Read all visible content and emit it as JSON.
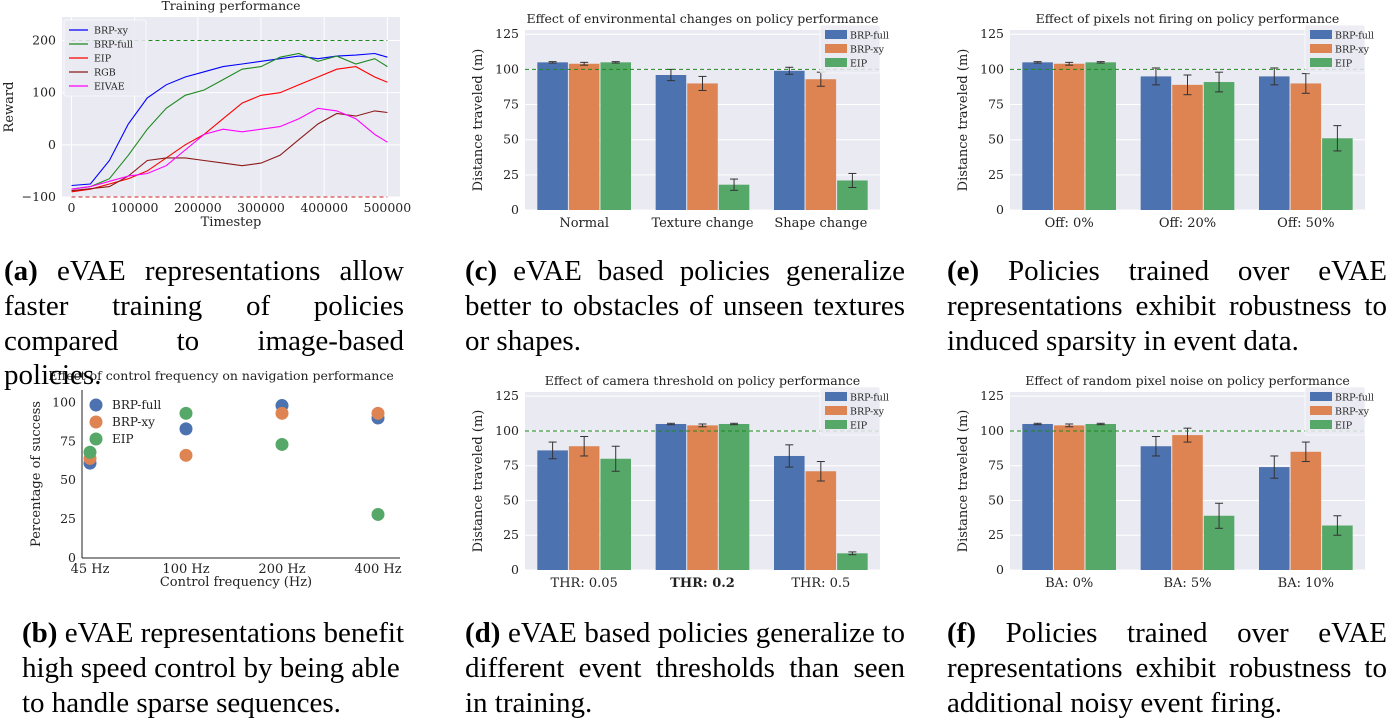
{
  "colors": {
    "blue": "#4C72B0",
    "orange": "#DD8452",
    "green": "#55A868",
    "bg": "#EAEAF2",
    "grid": "#FFFFFF",
    "ref": "#1C8A1C",
    "err": "#333333"
  },
  "panels": [
    {
      "id": "a",
      "caption": {
        "label": "(a)",
        "text": " eVAE representations allow faster training of policies compared to image-based policies."
      },
      "chart_data": {
        "type": "line",
        "title": "Training performance",
        "xlabel": "Timestep",
        "ylabel": "Reward",
        "xlim": [
          -15000,
          520000
        ],
        "ylim": [
          -100,
          245
        ],
        "xticks": [
          0,
          100000,
          200000,
          300000,
          400000,
          500000
        ],
        "xticklabels": [
          "0",
          "100000",
          "200000",
          "300000",
          "400000",
          "500000"
        ],
        "yticks": [
          -100,
          0,
          100,
          200
        ],
        "yticklabels": [
          "−100",
          "0",
          "100",
          "200"
        ],
        "ref_lines": [
          {
            "y": 200,
            "color": "#1C8A1C"
          },
          {
            "y": -100,
            "color": "#D62728"
          }
        ],
        "legend_position": "top-left",
        "series": [
          {
            "name": "BRP-xy",
            "color": "#0000FF",
            "x": [
              0,
              30000,
              60000,
              90000,
              120000,
              150000,
              180000,
              210000,
              240000,
              270000,
              300000,
              330000,
              360000,
              390000,
              420000,
              450000,
              480000,
              500000
            ],
            "y": [
              -78,
              -75,
              -30,
              40,
              90,
              115,
              130,
              140,
              150,
              155,
              160,
              165,
              170,
              165,
              170,
              172,
              175,
              168
            ]
          },
          {
            "name": "BRP-full",
            "color": "#1E8A1E",
            "x": [
              0,
              30000,
              60000,
              90000,
              120000,
              150000,
              180000,
              210000,
              240000,
              270000,
              300000,
              330000,
              360000,
              390000,
              420000,
              450000,
              480000,
              500000
            ],
            "y": [
              -85,
              -80,
              -65,
              -20,
              30,
              70,
              95,
              105,
              125,
              145,
              150,
              168,
              175,
              160,
              170,
              155,
              165,
              150
            ]
          },
          {
            "name": "EIP",
            "color": "#FF0000",
            "x": [
              0,
              30000,
              60000,
              90000,
              120000,
              150000,
              180000,
              210000,
              240000,
              270000,
              300000,
              330000,
              360000,
              390000,
              420000,
              450000,
              480000,
              500000
            ],
            "y": [
              -90,
              -85,
              -75,
              -65,
              -50,
              -25,
              0,
              20,
              50,
              80,
              95,
              100,
              115,
              130,
              145,
              150,
              130,
              120
            ]
          },
          {
            "name": "RGB",
            "color": "#8B1A1A",
            "x": [
              0,
              30000,
              60000,
              90000,
              120000,
              150000,
              180000,
              210000,
              240000,
              270000,
              300000,
              330000,
              360000,
              390000,
              420000,
              450000,
              480000,
              500000
            ],
            "y": [
              -88,
              -84,
              -80,
              -60,
              -30,
              -25,
              -25,
              -30,
              -35,
              -40,
              -35,
              -20,
              10,
              40,
              60,
              55,
              65,
              62
            ]
          },
          {
            "name": "EIVAE",
            "color": "#FF00FF",
            "x": [
              0,
              30000,
              60000,
              90000,
              120000,
              150000,
              180000,
              210000,
              240000,
              270000,
              300000,
              330000,
              360000,
              390000,
              420000,
              450000,
              480000,
              500000
            ],
            "y": [
              -85,
              -80,
              -70,
              -60,
              -55,
              -40,
              -10,
              20,
              30,
              25,
              30,
              35,
              50,
              70,
              65,
              50,
              20,
              5
            ]
          }
        ]
      }
    },
    {
      "id": "b",
      "caption": {
        "label": "(b)",
        "text": " eVAE representations benefit high speed control by being able to handle sparse sequences."
      },
      "chart_data": {
        "type": "scatter",
        "title": "Effect of control frequency on navigation performance",
        "xlabel": "Control frequency (Hz)",
        "ylabel": "Percentage of success",
        "categories": [
          "45 Hz",
          "100 Hz",
          "200 Hz",
          "400 Hz"
        ],
        "x": [
          45,
          100,
          200,
          400
        ],
        "ylim": [
          0,
          108
        ],
        "yticks": [
          0,
          25,
          50,
          75,
          100
        ],
        "legend_position": "top-left",
        "series": [
          {
            "name": "BRP-full",
            "color": "#4C72B0",
            "values": [
              61,
              83,
              98,
              90
            ]
          },
          {
            "name": "BRP-xy",
            "color": "#DD8452",
            "values": [
              64,
              66,
              93,
              93
            ]
          },
          {
            "name": "EIP",
            "color": "#55A868",
            "values": [
              68,
              93,
              73,
              28
            ]
          }
        ]
      }
    },
    {
      "id": "c",
      "caption": {
        "label": "(c)",
        "text": " eVAE based policies generalize better to obstacles of unseen textures or shapes."
      },
      "chart_data": {
        "type": "bar",
        "title": "Effect of environmental changes on policy performance",
        "ylabel": "Distance traveled (m)",
        "ylim": [
          0,
          128
        ],
        "yticks": [
          0,
          25,
          50,
          75,
          100,
          125
        ],
        "ref_line": 100,
        "bold_category": -1,
        "categories": [
          "Normal",
          "Texture change",
          "Shape change"
        ],
        "series": [
          {
            "name": "BRP-full",
            "color": "#4C72B0",
            "values": [
              105,
              96,
              99
            ],
            "errors": [
              0.5,
              4,
              2.5
            ]
          },
          {
            "name": "BRP-xy",
            "color": "#DD8452",
            "values": [
              104,
              90,
              93
            ],
            "errors": [
              1,
              5,
              5
            ]
          },
          {
            "name": "EIP",
            "color": "#55A868",
            "values": [
              105,
              18,
              21
            ],
            "errors": [
              0.5,
              4,
              5
            ]
          }
        ]
      }
    },
    {
      "id": "d",
      "caption": {
        "label": "(d)",
        "text": " eVAE based policies generalize to different event thresholds than seen in training."
      },
      "chart_data": {
        "type": "bar",
        "title": "Effect of camera threshold on policy performance",
        "ylabel": "Distance traveled (m)",
        "ylim": [
          0,
          128
        ],
        "yticks": [
          0,
          25,
          50,
          75,
          100,
          125
        ],
        "ref_line": 100,
        "bold_category": 1,
        "categories": [
          "THR: 0.05",
          "THR: 0.2",
          "THR: 0.5"
        ],
        "series": [
          {
            "name": "BRP-full",
            "color": "#4C72B0",
            "values": [
              86,
              105,
              82
            ],
            "errors": [
              6,
              0.5,
              8
            ]
          },
          {
            "name": "BRP-xy",
            "color": "#DD8452",
            "values": [
              89,
              104,
              71
            ],
            "errors": [
              7,
              1,
              7
            ]
          },
          {
            "name": "EIP",
            "color": "#55A868",
            "values": [
              80,
              105,
              12
            ],
            "errors": [
              9,
              0.5,
              1
            ]
          }
        ]
      }
    },
    {
      "id": "e",
      "caption": {
        "label": "(e)",
        "text": " Policies trained over eVAE representations exhibit robustness to induced sparsity in event data."
      },
      "chart_data": {
        "type": "bar",
        "title": "Effect of pixels not firing on policy performance",
        "ylabel": "Distance traveled (m)",
        "ylim": [
          0,
          128
        ],
        "yticks": [
          0,
          25,
          50,
          75,
          100,
          125
        ],
        "ref_line": 100,
        "bold_category": -1,
        "categories": [
          "Off: 0%",
          "Off: 20%",
          "Off: 50%"
        ],
        "series": [
          {
            "name": "BRP-full",
            "color": "#4C72B0",
            "values": [
              105,
              95,
              95
            ],
            "errors": [
              0.5,
              6,
              6
            ]
          },
          {
            "name": "BRP-xy",
            "color": "#DD8452",
            "values": [
              104,
              89,
              90
            ],
            "errors": [
              1,
              7,
              7
            ]
          },
          {
            "name": "EIP",
            "color": "#55A868",
            "values": [
              105,
              91,
              51
            ],
            "errors": [
              0.5,
              7,
              9
            ]
          }
        ]
      }
    },
    {
      "id": "f",
      "caption": {
        "label": "(f)",
        "text": " Policies trained over eVAE representations exhibit robustness to additional noisy event firing."
      },
      "chart_data": {
        "type": "bar",
        "title": "Effect of random pixel noise on policy performance",
        "ylabel": "Distance traveled (m)",
        "ylim": [
          0,
          128
        ],
        "yticks": [
          0,
          25,
          50,
          75,
          100,
          125
        ],
        "ref_line": 100,
        "bold_category": -1,
        "categories": [
          "BA: 0%",
          "BA: 5%",
          "BA: 10%"
        ],
        "series": [
          {
            "name": "BRP-full",
            "color": "#4C72B0",
            "values": [
              105,
              89,
              74
            ],
            "errors": [
              0.5,
              7,
              8
            ]
          },
          {
            "name": "BRP-xy",
            "color": "#DD8452",
            "values": [
              104,
              97,
              85
            ],
            "errors": [
              1,
              5,
              7
            ]
          },
          {
            "name": "EIP",
            "color": "#55A868",
            "values": [
              105,
              39,
              32
            ],
            "errors": [
              0.5,
              9,
              7
            ]
          }
        ]
      }
    }
  ]
}
